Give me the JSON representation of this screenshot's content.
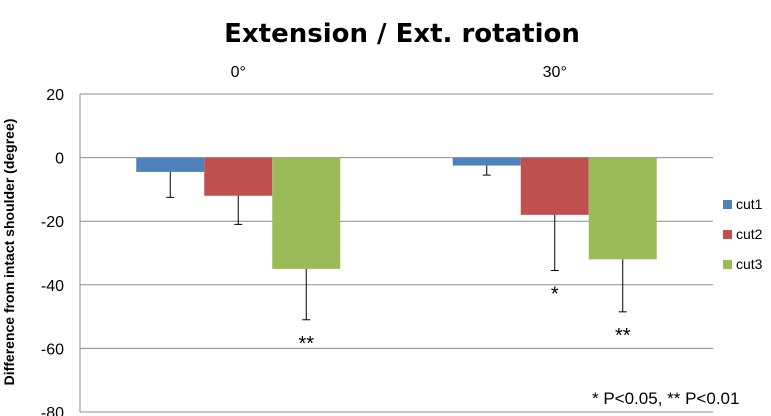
{
  "chart_data": {
    "type": "bar",
    "title": "Extension / Ext. rotation",
    "ylabel": "Difference from intact shoulder (degree)",
    "xlabel": "",
    "categories": [
      "0°",
      "30°"
    ],
    "ylim": [
      -80,
      20
    ],
    "yticks": [
      20,
      0,
      -20,
      -40,
      -60,
      -80
    ],
    "grid": true,
    "legend_position": "right",
    "series": [
      {
        "name": "cut1",
        "color": "#4F81BD",
        "values": [
          -4.5,
          -2.5
        ],
        "errors": [
          8,
          3
        ]
      },
      {
        "name": "cut2",
        "color": "#C0504D",
        "values": [
          -12,
          -18
        ],
        "errors": [
          9,
          17.5
        ]
      },
      {
        "name": "cut3",
        "color": "#9BBB59",
        "values": [
          -35,
          -32
        ],
        "errors": [
          16,
          16.5
        ]
      }
    ],
    "significance": [
      {
        "category": 0,
        "series": 0,
        "label": ""
      },
      {
        "category": 0,
        "series": 1,
        "label": ""
      },
      {
        "category": 0,
        "series": 2,
        "label": "**"
      },
      {
        "category": 1,
        "series": 0,
        "label": ""
      },
      {
        "category": 1,
        "series": 1,
        "label": "*"
      },
      {
        "category": 1,
        "series": 2,
        "label": "**"
      }
    ],
    "note": "* P<0.05, ** P<0.01"
  }
}
